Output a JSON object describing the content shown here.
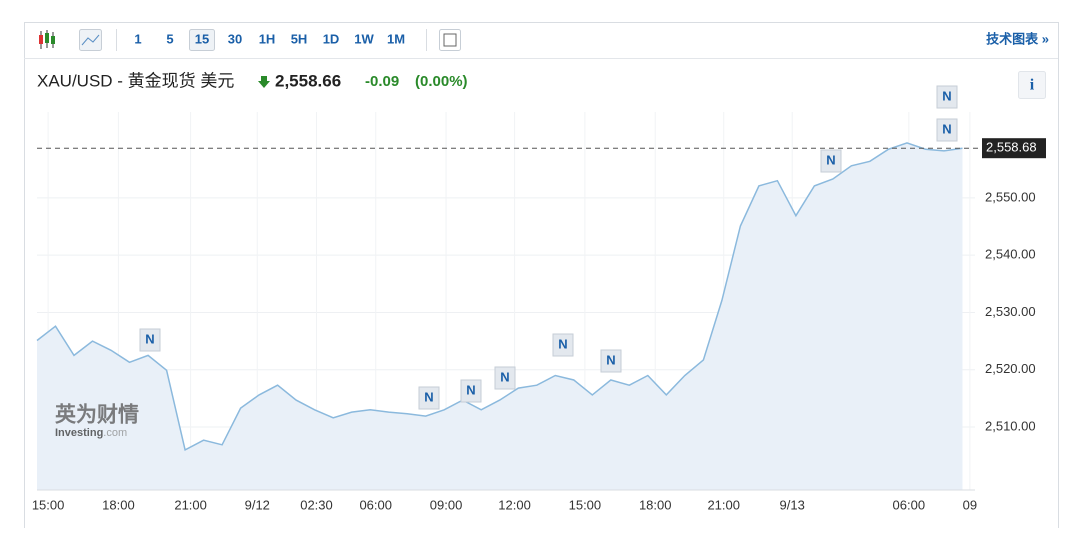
{
  "toolbar": {
    "intervals": [
      "1",
      "5",
      "15",
      "30",
      "1H",
      "5H",
      "1D",
      "1W",
      "1M"
    ],
    "selected": "15",
    "link": "技术图表 »",
    "info": "i"
  },
  "quote": {
    "symbol": "XAU/USD - 黄金现货 美元",
    "price": "2,558.66",
    "change": "-0.09",
    "change_pct": "(0.00%)"
  },
  "watermark": {
    "cn": "英为财情",
    "en": "Investing",
    "domain": ".com"
  },
  "news_label": "N",
  "chart_data": {
    "type": "area",
    "values": [
      2525.1,
      2527.6,
      2522.5,
      2525,
      2523.4,
      2521.3,
      2522.5,
      2519.9,
      2506,
      2507.7,
      2506.9,
      2513.3,
      2515.6,
      2517.3,
      2514.7,
      2513,
      2511.6,
      2512.6,
      2513,
      2512.6,
      2512.3,
      2511.9,
      2513,
      2514.7,
      2513,
      2514.7,
      2516.8,
      2517.3,
      2519,
      2518.2,
      2515.6,
      2518.2,
      2517.3,
      2519,
      2515.6,
      2519,
      2521.7,
      2532.1,
      2545.1,
      2552.1,
      2553,
      2546.9,
      2552.1,
      2553.3,
      2555.6,
      2556.4,
      2558.5,
      2559.6,
      2558.5,
      2558.2,
      2558.68
    ],
    "color": "#8bb9dd",
    "fill": "#e9f0f8",
    "xlim": [
      0,
      51
    ],
    "xticks": [
      {
        "value": 0.6,
        "label": "15:00"
      },
      {
        "value": 4.4,
        "label": "18:00"
      },
      {
        "value": 8.3,
        "label": "21:00"
      },
      {
        "value": 11.9,
        "label": "9/12"
      },
      {
        "value": 15.1,
        "label": "02:30"
      },
      {
        "value": 18.3,
        "label": "06:00"
      },
      {
        "value": 22.1,
        "label": "09:00"
      },
      {
        "value": 25.8,
        "label": "12:00"
      },
      {
        "value": 29.6,
        "label": "15:00"
      },
      {
        "value": 33.4,
        "label": "18:00"
      },
      {
        "value": 37.1,
        "label": "21:00"
      },
      {
        "value": 40.8,
        "label": "9/13"
      },
      {
        "value": 47.1,
        "label": "06:00"
      },
      {
        "value": 50.4,
        "label": "09"
      }
    ],
    "ylim": [
      2499,
      2565
    ],
    "yticks": [
      {
        "value": 2510,
        "label": "2,510.00"
      },
      {
        "value": 2520,
        "label": "2,520.00"
      },
      {
        "value": 2530,
        "label": "2,530.00"
      },
      {
        "value": 2540,
        "label": "2,540.00"
      },
      {
        "value": 2550,
        "label": "2,550.00"
      }
    ],
    "last_price": {
      "value": 2558.68,
      "label": "2,558.68"
    },
    "grid": true
  }
}
